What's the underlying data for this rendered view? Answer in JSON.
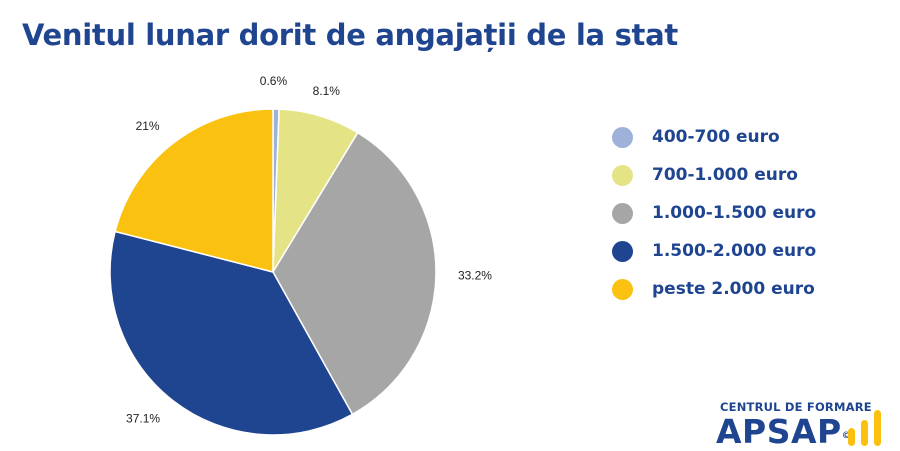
{
  "chart_data": {
    "type": "pie",
    "title": "Venitul lunar dorit de angajații de la stat",
    "slices": [
      {
        "label": "400-700 euro",
        "value": 0.6,
        "display": "0.6%",
        "color": "#9db1d9"
      },
      {
        "label": "700-1.000 euro",
        "value": 8.1,
        "display": "8.1%",
        "color": "#e4e486"
      },
      {
        "label": "1.000-1.500 euro",
        "value": 33.2,
        "display": "33.2%",
        "color": "#a6a6a6"
      },
      {
        "label": "1.500-2.000 euro",
        "value": 37.1,
        "display": "37.1%",
        "color": "#1f4590"
      },
      {
        "label": "peste 2.000 euro",
        "value": 21,
        "display": "21%",
        "color": "#fbc111"
      }
    ],
    "legend_position": "right"
  },
  "logo": {
    "subtitle": "CENTRUL DE FORMARE",
    "name": "APSAP",
    "registered": "©",
    "color": "#1f4590",
    "accent_color": "#fbc111"
  }
}
